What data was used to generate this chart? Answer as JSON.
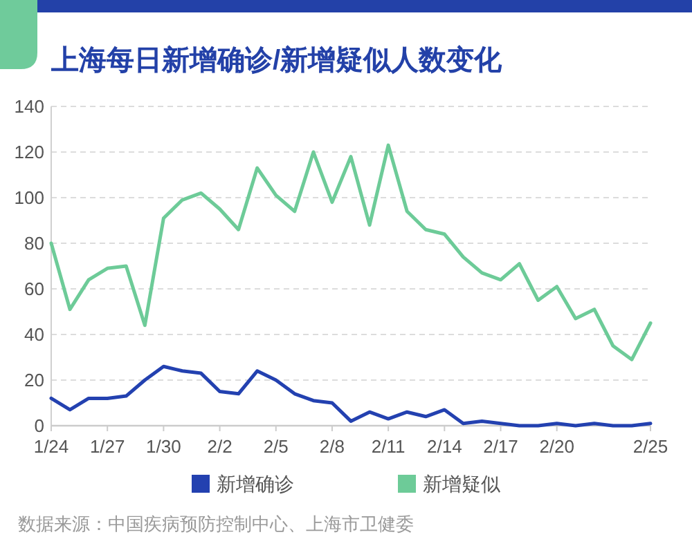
{
  "chart_data": {
    "type": "line",
    "title": "上海每日新增确诊/新增疑似人数变化",
    "categories": [
      "1/24",
      null,
      null,
      "1/27",
      null,
      null,
      "1/30",
      null,
      null,
      "2/2",
      null,
      null,
      "2/5",
      null,
      null,
      "2/8",
      null,
      null,
      "2/11",
      null,
      null,
      "2/14",
      null,
      null,
      "2/17",
      null,
      null,
      "2/20",
      null,
      null,
      null,
      null,
      "2/25"
    ],
    "series": [
      {
        "name": "新增确诊",
        "color": "#2341b0",
        "values": [
          12,
          7,
          12,
          12,
          13,
          20,
          26,
          24,
          23,
          15,
          14,
          24,
          20,
          14,
          11,
          10,
          2,
          6,
          3,
          6,
          4,
          7,
          1,
          2,
          1,
          0,
          0,
          1,
          0,
          1,
          0,
          0,
          1
        ]
      },
      {
        "name": "新增疑似",
        "color": "#6dcb98",
        "values": [
          80,
          51,
          64,
          69,
          70,
          44,
          91,
          99,
          102,
          95,
          86,
          113,
          101,
          94,
          120,
          98,
          118,
          88,
          123,
          94,
          86,
          84,
          74,
          67,
          64,
          71,
          55,
          61,
          47,
          51,
          35,
          29,
          45
        ]
      }
    ],
    "ylim": [
      0,
      140
    ],
    "yticks": [
      0,
      20,
      40,
      60,
      80,
      100,
      120,
      140
    ],
    "grid": "y",
    "legend": "bottom",
    "annotations": [
      "数据来源：中国疾病预防控制中心、上海市卫健委"
    ]
  }
}
